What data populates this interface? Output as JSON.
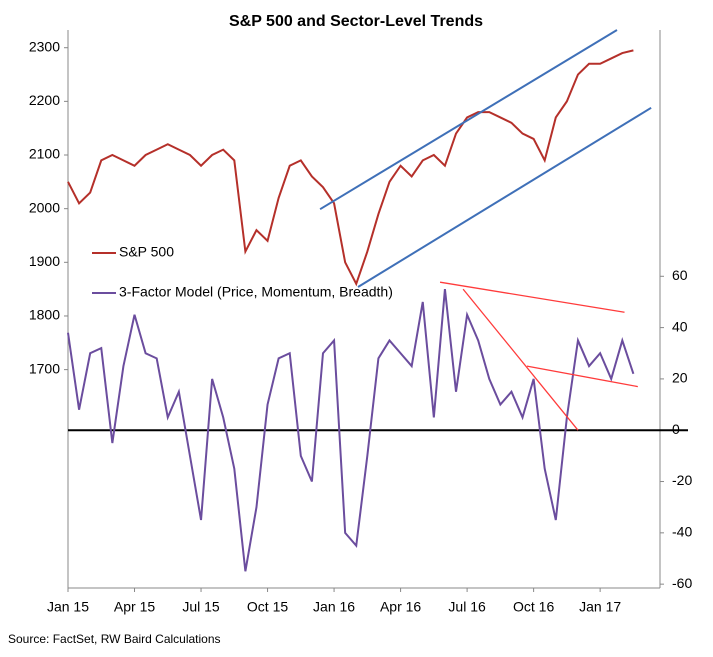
{
  "chart_data": {
    "type": "line",
    "title": "S&P 500 and Sector-Level Trends",
    "source": "Source: FactSet, RW Baird Calculations",
    "x": [
      0,
      0.5,
      1,
      1.5,
      2,
      2.5,
      3,
      3.5,
      4,
      4.5,
      5,
      5.5,
      6,
      6.5,
      7,
      7.5,
      8,
      8.5,
      9,
      9.5,
      10,
      10.5,
      11,
      11.5,
      12,
      12.5,
      13,
      13.5,
      14,
      14.5,
      15,
      15.5,
      16,
      16.5,
      17,
      17.5,
      18,
      18.5,
      19,
      19.5,
      20,
      20.5,
      21,
      21.5,
      22,
      22.5,
      23,
      23.5,
      24,
      24.5,
      25,
      25.5
    ],
    "xlim": [
      0,
      26.7
    ],
    "xticks": [
      {
        "value": 0,
        "label": "Jan 15"
      },
      {
        "value": 3,
        "label": "Apr 15"
      },
      {
        "value": 6,
        "label": "Jul 15"
      },
      {
        "value": 9,
        "label": "Oct 15"
      },
      {
        "value": 12,
        "label": "Jan 16"
      },
      {
        "value": 15,
        "label": "Apr 16"
      },
      {
        "value": 18,
        "label": "Jul 16"
      },
      {
        "value": 21,
        "label": "Oct 16"
      },
      {
        "value": 24,
        "label": "Jan 17"
      }
    ],
    "ylim": [
      1293,
      2333
    ],
    "yticks": [
      1700,
      1800,
      1900,
      2000,
      2100,
      2200,
      2300
    ],
    "y2lim": [
      -61.5,
      156
    ],
    "y2ticks": [
      -60,
      -40,
      -20,
      0,
      20,
      40,
      60
    ],
    "series": [
      {
        "name": "S&P 500",
        "color": "#b5302a",
        "values": [
          2050,
          2010,
          2030,
          2090,
          2100,
          2090,
          2080,
          2100,
          2110,
          2120,
          2110,
          2100,
          2080,
          2100,
          2110,
          2090,
          1920,
          1960,
          1940,
          2020,
          2080,
          2090,
          2060,
          2040,
          2010,
          1900,
          1860,
          1920,
          1990,
          2050,
          2080,
          2060,
          2090,
          2100,
          2080,
          2140,
          2170,
          2180,
          2180,
          2170,
          2160,
          2140,
          2130,
          2090,
          2170,
          2200,
          2250,
          2270,
          2270,
          2280,
          2290,
          2295
        ]
      },
      {
        "name": "3-Factor Model (Price, Momentum, Breadth)",
        "color": "#6b4d9e",
        "axis": "y2",
        "values": [
          38,
          8,
          30,
          32,
          -5,
          25,
          45,
          30,
          28,
          5,
          15,
          -10,
          -35,
          20,
          5,
          -15,
          -55,
          -30,
          10,
          28,
          30,
          -10,
          -20,
          30,
          35,
          -40,
          -45,
          -10,
          28,
          35,
          30,
          25,
          50,
          5,
          55,
          15,
          45,
          35,
          20,
          10,
          15,
          5,
          20,
          -15,
          -35,
          5,
          35,
          25,
          30,
          20,
          35,
          22
        ]
      }
    ],
    "trend_lines": [
      {
        "color": "#3f70b8",
        "x": [
          11.37,
          24.76
        ],
        "values": [
          1999,
          2333
        ]
      },
      {
        "color": "#3f70b8",
        "x": [
          13.08,
          26.3
        ],
        "values": [
          1854,
          2188
        ]
      },
      {
        "color": "#ff3b3b",
        "axis": "y2",
        "x": [
          16.78,
          25.1
        ],
        "values": [
          57.7,
          46
        ]
      },
      {
        "color": "#ff3b3b",
        "axis": "y2",
        "x": [
          17.82,
          23.0
        ],
        "values": [
          55,
          0
        ]
      },
      {
        "color": "#ff3b3b",
        "axis": "y2",
        "x": [
          20.7,
          25.7
        ],
        "values": [
          25,
          17
        ]
      }
    ]
  }
}
